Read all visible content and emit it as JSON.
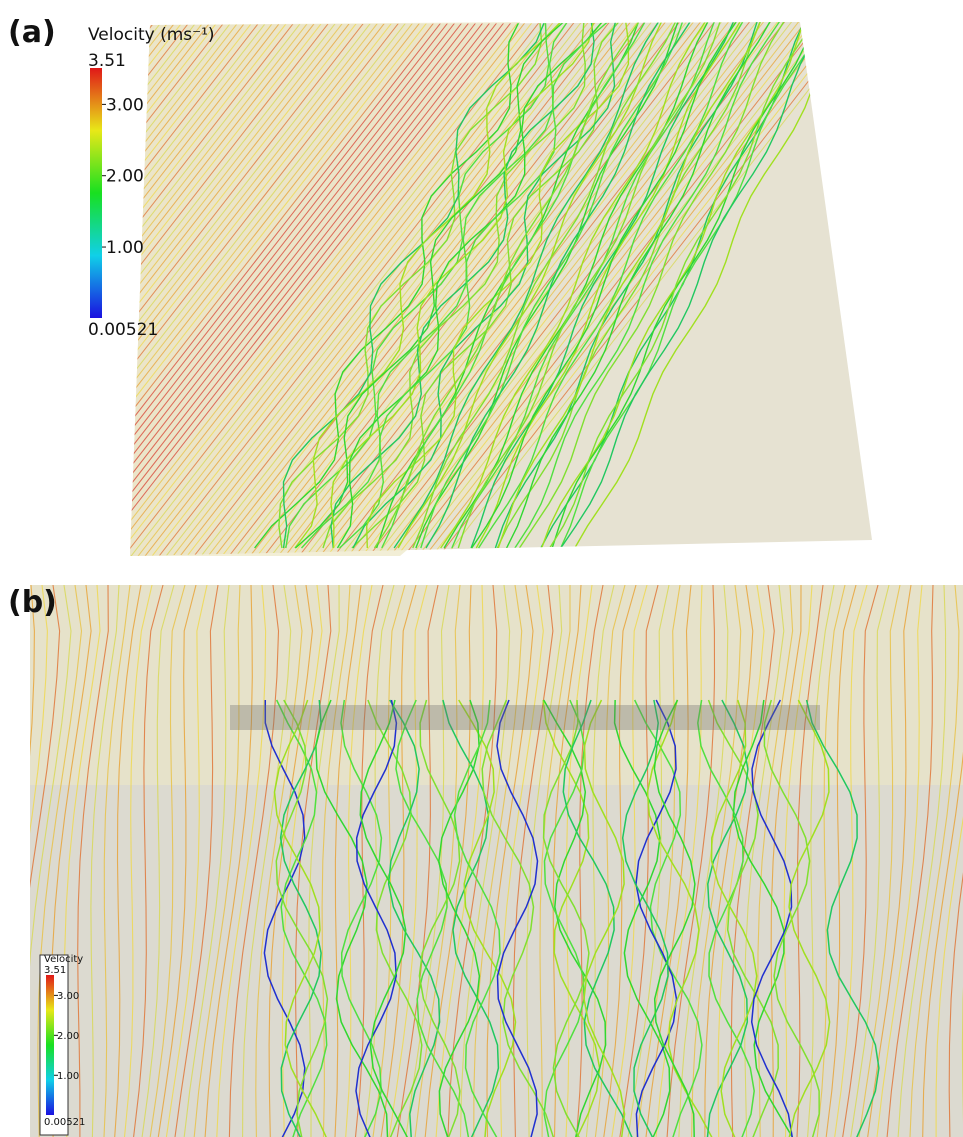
{
  "panels": [
    {
      "label": "(a)",
      "colorbar": {
        "title": "Velocity (ms⁻¹)",
        "range": [
          0.00521,
          3.51
        ],
        "ticks": [
          {
            "value": 3,
            "label": "3.00"
          },
          {
            "value": 2,
            "label": "2.00"
          },
          {
            "value": 1,
            "label": "1.00"
          }
        ]
      }
    },
    {
      "label": "(b)",
      "colorbar": {
        "title": "Velocity",
        "range": [
          0.00521,
          3.51
        ],
        "ticks": [
          {
            "value": 3,
            "label": "3.00"
          },
          {
            "value": 2,
            "label": "2.00"
          },
          {
            "value": 1,
            "label": "1.00"
          }
        ]
      }
    }
  ]
}
